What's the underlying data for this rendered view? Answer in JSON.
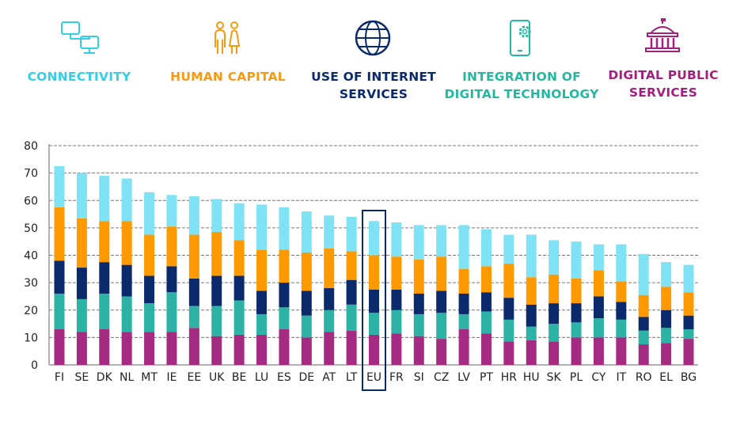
{
  "legend": [
    {
      "key": "connectivity",
      "label_lines": [
        "CONNECTIVITY"
      ],
      "color": "#7fe3f5",
      "text_color": "#33cfe6",
      "icon": "computer-network-icon"
    },
    {
      "key": "human_capital",
      "label_lines": [
        "HUMAN CAPITAL"
      ],
      "color": "#ff9900",
      "text_color": "#f79a0f",
      "icon": "people-icon"
    },
    {
      "key": "use_of_internet",
      "label_lines": [
        "USE OF INTERNET",
        "SERVICES"
      ],
      "color": "#0b2a6b",
      "text_color": "#0b2a6b",
      "icon": "globe-icon"
    },
    {
      "key": "integration",
      "label_lines": [
        "INTEGRATION OF",
        "DIGITAL TECHNOLOGY"
      ],
      "color": "#2db3a5",
      "text_color": "#22b8a2",
      "icon": "phone-gear-icon"
    },
    {
      "key": "digital_public_services",
      "label_lines": [
        "DIGITAL PUBLIC",
        "SERVICES"
      ],
      "color": "#a52a82",
      "text_color": "#a3207f",
      "icon": "government-building-icon"
    }
  ],
  "chart_data": {
    "type": "bar",
    "stacked": true,
    "title": "",
    "xlabel": "",
    "ylabel": "",
    "ylim": [
      0,
      80
    ],
    "yticks": [
      0,
      10,
      20,
      30,
      40,
      50,
      60,
      70,
      80
    ],
    "grid": "horizontal dashed",
    "highlight_category": "EU",
    "categories": [
      "FI",
      "SE",
      "DK",
      "NL",
      "MT",
      "IE",
      "EE",
      "UK",
      "BE",
      "LU",
      "ES",
      "DE",
      "AT",
      "LT",
      "EU",
      "FR",
      "SI",
      "CZ",
      "LV",
      "PT",
      "HR",
      "HU",
      "SK",
      "PL",
      "CY",
      "IT",
      "RO",
      "EL",
      "BG"
    ],
    "series": [
      {
        "name": "DIGITAL PUBLIC SERVICES",
        "color": "#a52a82",
        "values": [
          13,
          12,
          13,
          12,
          12,
          12,
          13.5,
          10.5,
          11,
          11,
          13,
          10,
          12,
          12.5,
          11,
          11.5,
          10.5,
          9.5,
          13,
          11.5,
          8.5,
          9,
          8.5,
          10,
          10,
          10,
          7.5,
          8,
          9.5
        ]
      },
      {
        "name": "INTEGRATION OF DIGITAL TECHNOLOGY",
        "color": "#2db3a5",
        "values": [
          13,
          12,
          13,
          13,
          10.5,
          14.5,
          8,
          11,
          12.5,
          7.5,
          8,
          8,
          8,
          9.5,
          8,
          8.5,
          8,
          9.5,
          5.5,
          8,
          8,
          5,
          6.5,
          5.5,
          7,
          6.5,
          5,
          5.5,
          3.5
        ]
      },
      {
        "name": "USE OF INTERNET SERVICES",
        "color": "#0b2a6b",
        "values": [
          12,
          11.5,
          11.5,
          11.5,
          10,
          9.5,
          10,
          11,
          9,
          8.5,
          9,
          9,
          8,
          9,
          8.5,
          7.5,
          7.5,
          8,
          7.5,
          7,
          8,
          8,
          7.5,
          7,
          8,
          6.5,
          5,
          6.5,
          5
        ]
      },
      {
        "name": "HUMAN CAPITAL",
        "color": "#ff9900",
        "values": [
          19.5,
          18,
          15,
          16,
          15,
          14.5,
          16,
          16,
          13,
          15,
          12,
          14,
          14.5,
          10.5,
          12.5,
          12,
          12.5,
          12.5,
          9,
          9.5,
          12.5,
          10,
          10.5,
          9,
          9.5,
          7.5,
          8,
          8.5,
          8.5
        ]
      },
      {
        "name": "CONNECTIVITY",
        "color": "#7fe3f5",
        "values": [
          15,
          16.5,
          16.5,
          15.5,
          15.5,
          11.5,
          14,
          12,
          13.5,
          16.5,
          15.5,
          15,
          12,
          12.5,
          12.5,
          12.5,
          12.5,
          11.5,
          16,
          13.5,
          10.5,
          15.5,
          12.5,
          13.5,
          9.5,
          13.5,
          15,
          9,
          10
        ]
      }
    ]
  }
}
